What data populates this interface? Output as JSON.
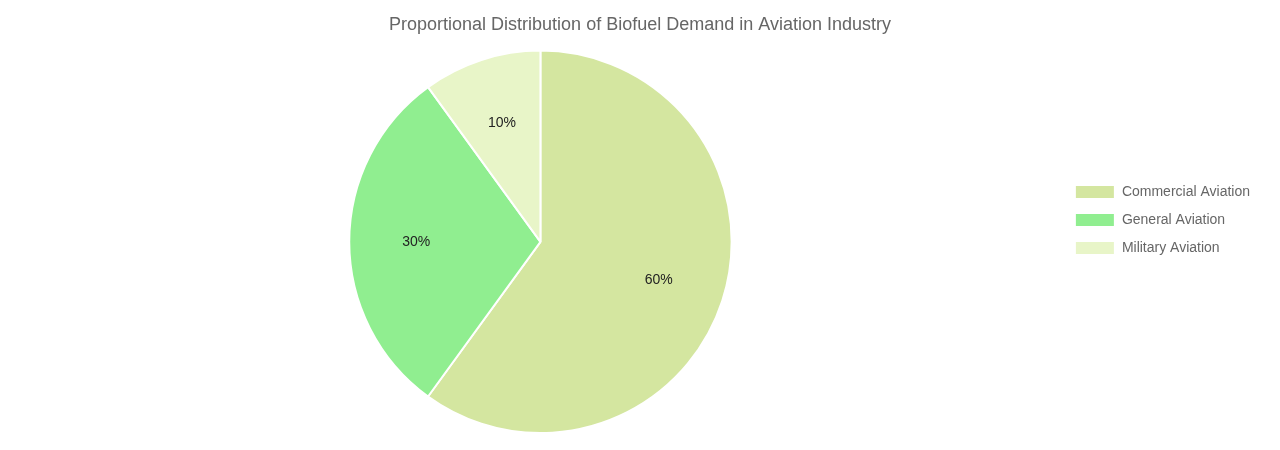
{
  "chart_data": {
    "type": "pie",
    "title": "Proportional Distribution of Biofuel Demand in Aviation Industry",
    "categories": [
      "Commercial Aviation",
      "General Aviation",
      "Military Aviation"
    ],
    "values": [
      60,
      30,
      10
    ],
    "value_labels": [
      "60%",
      "30%",
      "10%"
    ],
    "colors": [
      "#d4e6a0",
      "#90ee90",
      "#e8f5c8"
    ],
    "data_labels": true,
    "legend": "right"
  }
}
